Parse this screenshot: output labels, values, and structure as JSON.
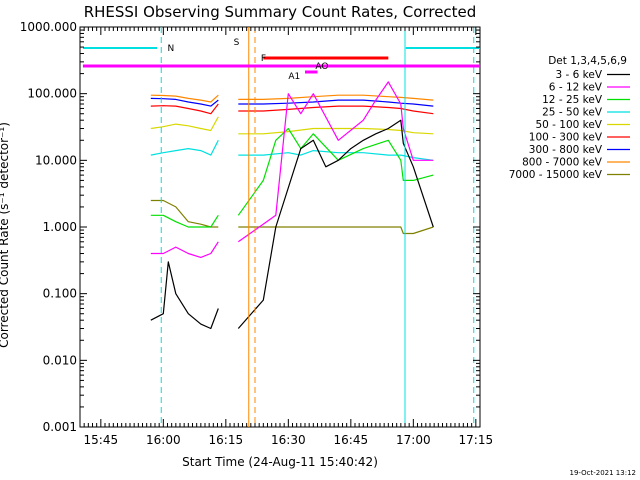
{
  "chart_data": {
    "type": "line",
    "title": "RHESSI Observing Summary Count Rates, Corrected",
    "xlabel": "Start Time (24-Aug-11 15:40:42)",
    "ylabel": "Corrected Count Rate (s⁻¹ detector⁻¹)",
    "y_scale": "log",
    "ylim": [
      0.001,
      1000
    ],
    "xlim_minutes": [
      15.68,
      17.26
    ],
    "grid": false,
    "y_ticks": [
      "1000.000",
      "100.000",
      "10.000",
      "1.000",
      "0.100",
      "0.010",
      "0.001"
    ],
    "x_ticks": [
      "15:45",
      "16:00",
      "16:15",
      "16:30",
      "16:45",
      "17:00",
      "17:15"
    ],
    "legend": {
      "placement": "right",
      "title": "Det 1,3,4,5,6,9",
      "entries": [
        {
          "label": "3 - 6 keV",
          "color": "#000000"
        },
        {
          "label": "6 - 12 keV",
          "color": "#ff00ff"
        },
        {
          "label": "12 - 25 keV",
          "color": "#00e000"
        },
        {
          "label": "25 - 50 keV",
          "color": "#00e0e0"
        },
        {
          "label": "50 - 100 keV",
          "color": "#d8d800"
        },
        {
          "label": "100 - 300 keV",
          "color": "#ff0000"
        },
        {
          "label": "300 - 800 keV",
          "color": "#0000ff"
        },
        {
          "label": "800 - 7000 keV",
          "color": "#ff8800"
        },
        {
          "label": "7000 - 15000 keV",
          "color": "#808000"
        }
      ]
    },
    "flags": [
      {
        "label": "N",
        "color": "#00e0e0"
      },
      {
        "label": "S",
        "color": "#ff8800"
      },
      {
        "label": "F",
        "color": "#ff0000"
      },
      {
        "label": "A1",
        "color": "#ff00ff"
      },
      {
        "label": "AO",
        "color": "#ff00ff"
      }
    ],
    "series": [
      {
        "name": "3 - 6 keV",
        "x": [
          15.95,
          16.0,
          16.02,
          16.05,
          16.1,
          16.15,
          16.19,
          16.22,
          16.25,
          16.3,
          16.4,
          16.45,
          16.55,
          16.6,
          16.65,
          16.7,
          16.75,
          16.8,
          16.85,
          16.9,
          16.95,
          16.96,
          17.0,
          17.08
        ],
        "y": [
          0.04,
          0.05,
          0.3,
          0.1,
          0.05,
          0.035,
          0.03,
          0.06,
          null,
          0.03,
          0.08,
          1.0,
          15,
          20,
          8,
          10,
          15,
          20,
          25,
          30,
          40,
          18,
          8,
          1
        ]
      },
      {
        "name": "6 - 12 keV",
        "x": [
          15.95,
          16.0,
          16.05,
          16.1,
          16.15,
          16.19,
          16.22,
          16.25,
          16.3,
          16.45,
          16.5,
          16.55,
          16.6,
          16.7,
          16.8,
          16.85,
          16.9,
          16.95,
          16.96,
          17.0,
          17.08
        ],
        "y": [
          0.4,
          0.4,
          0.5,
          0.4,
          0.35,
          0.4,
          0.6,
          null,
          0.6,
          1.5,
          100,
          50,
          100,
          20,
          40,
          80,
          150,
          70,
          30,
          10,
          10
        ]
      },
      {
        "name": "12 - 25 keV",
        "x": [
          15.95,
          16.0,
          16.05,
          16.1,
          16.15,
          16.19,
          16.22,
          16.25,
          16.3,
          16.4,
          16.45,
          16.5,
          16.55,
          16.6,
          16.7,
          16.8,
          16.9,
          16.95,
          16.96,
          17.0,
          17.08
        ],
        "y": [
          1.5,
          1.5,
          1.2,
          1.0,
          1.0,
          1.0,
          1.5,
          null,
          1.5,
          5,
          20,
          30,
          15,
          25,
          10,
          15,
          20,
          10,
          5,
          5,
          6
        ]
      },
      {
        "name": "25 - 50 keV",
        "x": [
          15.95,
          16.0,
          16.05,
          16.1,
          16.15,
          16.19,
          16.22,
          16.25,
          16.3,
          16.4,
          16.5,
          16.55,
          16.6,
          16.7,
          16.8,
          16.9,
          16.95,
          17.0,
          17.08
        ],
        "y": [
          12,
          13,
          14,
          15,
          14,
          12,
          20,
          null,
          12,
          12,
          13,
          12,
          14,
          13,
          13,
          12,
          12,
          11,
          10
        ]
      },
      {
        "name": "50 - 100 keV",
        "x": [
          15.95,
          16.0,
          16.05,
          16.1,
          16.15,
          16.19,
          16.22,
          16.25,
          16.3,
          16.4,
          16.5,
          16.6,
          16.7,
          16.8,
          16.9,
          16.95,
          17.0,
          17.08
        ],
        "y": [
          30,
          32,
          35,
          33,
          30,
          28,
          45,
          null,
          25,
          25,
          27,
          30,
          30,
          30,
          29,
          28,
          26,
          25
        ]
      },
      {
        "name": "100 - 300 keV",
        "x": [
          15.95,
          16.0,
          16.05,
          16.1,
          16.15,
          16.19,
          16.22,
          16.25,
          16.3,
          16.4,
          16.5,
          16.6,
          16.7,
          16.8,
          16.9,
          16.95,
          17.0,
          17.08
        ],
        "y": [
          65,
          66,
          65,
          60,
          55,
          50,
          70,
          null,
          55,
          55,
          58,
          62,
          65,
          65,
          62,
          60,
          55,
          50
        ]
      },
      {
        "name": "300 - 800 keV",
        "x": [
          15.95,
          16.0,
          16.05,
          16.1,
          16.15,
          16.19,
          16.22,
          16.25,
          16.3,
          16.4,
          16.5,
          16.6,
          16.7,
          16.8,
          16.9,
          16.95,
          17.0,
          17.08
        ],
        "y": [
          85,
          84,
          82,
          75,
          70,
          65,
          80,
          null,
          70,
          70,
          72,
          75,
          80,
          80,
          75,
          72,
          70,
          65
        ]
      },
      {
        "name": "800 - 7000 keV",
        "x": [
          15.95,
          16.0,
          16.05,
          16.1,
          16.15,
          16.19,
          16.22,
          16.25,
          16.3,
          16.4,
          16.5,
          16.6,
          16.7,
          16.8,
          16.9,
          16.95,
          17.0,
          17.08
        ],
        "y": [
          95,
          94,
          92,
          85,
          80,
          75,
          95,
          null,
          82,
          82,
          85,
          90,
          95,
          95,
          90,
          88,
          85,
          80
        ]
      },
      {
        "name": "7000 - 15000 keV",
        "x": [
          15.95,
          16.0,
          16.05,
          16.1,
          16.15,
          16.19,
          16.22,
          16.25,
          16.3,
          16.4,
          16.5,
          16.6,
          16.7,
          16.8,
          16.9,
          16.95,
          16.96,
          17.0,
          17.08
        ],
        "y": [
          2.5,
          2.5,
          2,
          1.2,
          1.1,
          1.0,
          1.0,
          null,
          1.0,
          1.0,
          1.0,
          1.0,
          1.0,
          1.0,
          1.0,
          1.0,
          0.8,
          0.8,
          1.0
        ]
      }
    ]
  },
  "footer": {
    "timestamp": "19-Oct-2021 13:12"
  }
}
